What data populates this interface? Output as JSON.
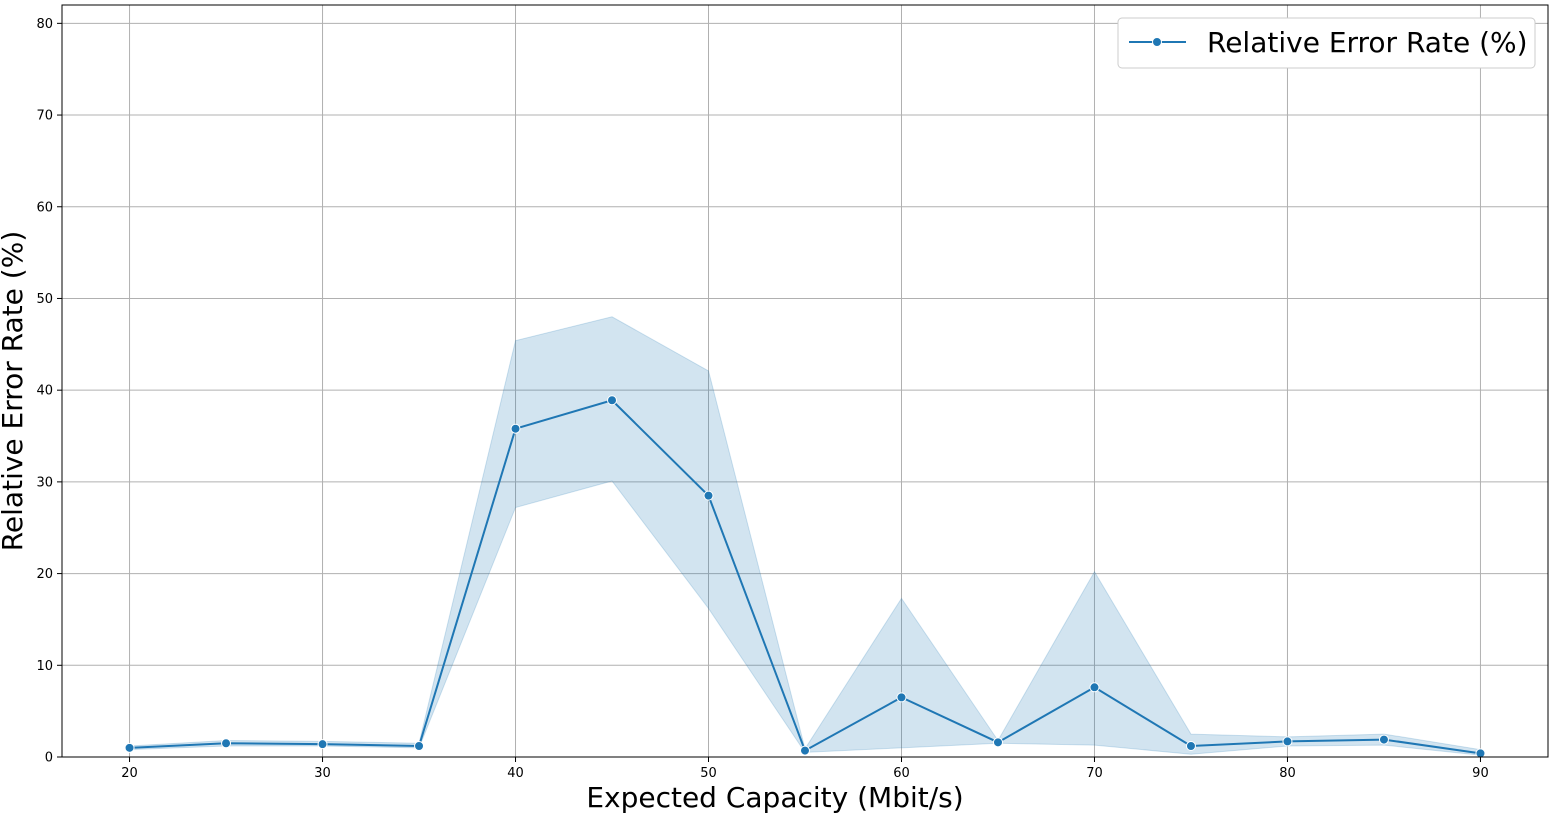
{
  "chart_data": {
    "type": "line",
    "xlabel": "Expected Capacity (Mbit/s)",
    "ylabel": "Relative Error Rate (%)",
    "xlim": [
      16.5,
      93.5
    ],
    "ylim": [
      0,
      82
    ],
    "x_ticks": [
      20,
      30,
      40,
      50,
      60,
      70,
      80,
      90
    ],
    "y_ticks": [
      0,
      10,
      20,
      30,
      40,
      50,
      60,
      70,
      80
    ],
    "grid": true,
    "legend_position": "top-right",
    "colors": {
      "line": "#1f77b4",
      "band": "#1f77b4",
      "grid": "#b0b0b0"
    },
    "series": [
      {
        "name": "Relative Error Rate (%)",
        "x": [
          20,
          25,
          30,
          35,
          40,
          45,
          50,
          55,
          60,
          65,
          70,
          75,
          80,
          85,
          90
        ],
        "y": [
          1.0,
          1.5,
          1.4,
          1.2,
          35.8,
          38.9,
          28.5,
          0.7,
          6.5,
          1.6,
          7.6,
          1.2,
          1.7,
          1.9,
          0.4
        ],
        "ci_low": [
          0.8,
          1.2,
          1.2,
          1.0,
          27.2,
          30.1,
          16.2,
          0.5,
          1.0,
          1.5,
          1.3,
          0.3,
          1.2,
          1.3,
          0.2
        ],
        "ci_high": [
          1.2,
          1.8,
          1.7,
          1.5,
          45.4,
          48.0,
          42.1,
          0.9,
          17.3,
          1.8,
          20.2,
          2.5,
          2.2,
          2.5,
          0.8
        ]
      }
    ]
  }
}
